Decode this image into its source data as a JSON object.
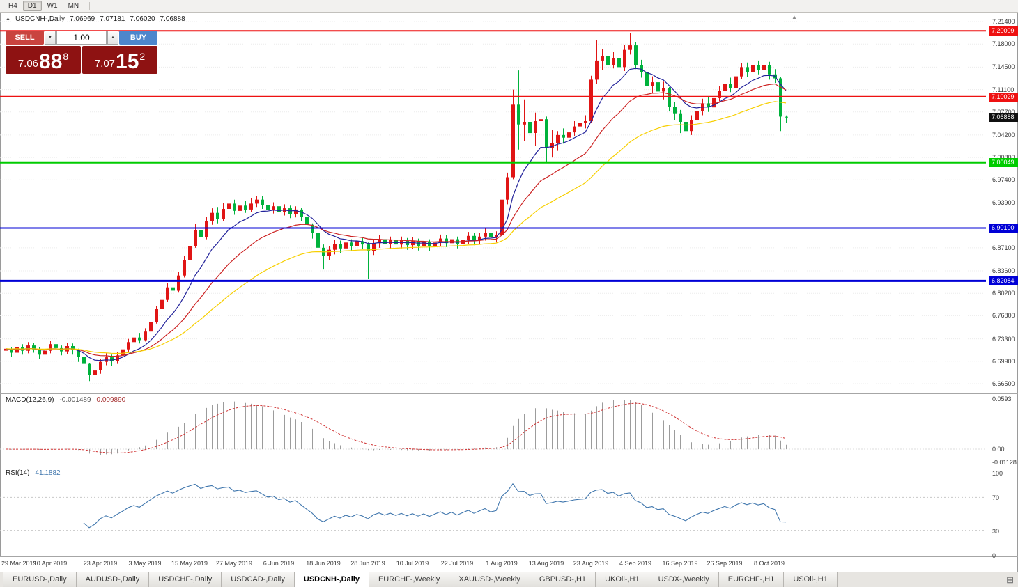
{
  "toolbar": {
    "periods": [
      {
        "label": "H4",
        "active": false
      },
      {
        "label": "D1",
        "active": true
      },
      {
        "label": "W1",
        "active": false
      },
      {
        "label": "MN",
        "active": false
      }
    ]
  },
  "header": {
    "symbol": "USDCNH-,Daily",
    "open": "7.06969",
    "high": "7.07181",
    "low": "7.06020",
    "close": "7.06888"
  },
  "trade_widget": {
    "sell_label": "SELL",
    "buy_label": "BUY",
    "lot": "1.00",
    "bid": {
      "prefix": "7.06",
      "big": "88",
      "sup": "8"
    },
    "ask": {
      "prefix": "7.07",
      "big": "15",
      "sup": "2"
    },
    "colors": {
      "sell_btn": "#c9433f",
      "buy_btn": "#4d86cc",
      "price_box": "#8e1212"
    }
  },
  "price_axis": {
    "labels": [
      "7.21400",
      "7.18000",
      "7.14500",
      "7.11100",
      "7.07700",
      "7.04200",
      "7.00800",
      "6.97400",
      "6.93900",
      "6.87100",
      "6.83600",
      "6.80200",
      "6.76800",
      "6.73300",
      "6.69900",
      "6.66500"
    ],
    "badges": [
      {
        "value": "7.20009",
        "color": "#ee1111",
        "type": "level"
      },
      {
        "value": "7.10029",
        "color": "#ee1111",
        "type": "level"
      },
      {
        "value": "7.06888",
        "color": "#101010",
        "type": "current"
      },
      {
        "value": "7.00049",
        "color": "#00cc00",
        "type": "level"
      },
      {
        "value": "6.90100",
        "color": "#0000d6",
        "type": "level"
      },
      {
        "value": "6.82084",
        "color": "#0000d6",
        "type": "level"
      }
    ]
  },
  "macd": {
    "label": "MACD(12,26,9)",
    "main_value": "-0.001489",
    "signal_value": "0.009890",
    "axis": [
      "0.0593",
      "0.00",
      "-0.01128"
    ],
    "histogram_color": "#9c9c9c",
    "signal_color": "#d03636"
  },
  "rsi": {
    "label": "RSI(14)",
    "value": "41.1882",
    "period": 14,
    "levels": [
      70,
      30
    ],
    "axis": [
      "100",
      "70",
      "30",
      "0"
    ],
    "color": "#3f76ad"
  },
  "misc": {
    "collapse_icon": "▲",
    "shift_marker": "▲",
    "spin_down_icon": "▼",
    "spin_up_icon": "▲",
    "tile_icon": "⊞"
  },
  "tabs": [
    {
      "label": "EURUSD-,Daily",
      "active": false
    },
    {
      "label": "AUDUSD-,Daily",
      "active": false
    },
    {
      "label": "USDCHF-,Daily",
      "active": false
    },
    {
      "label": "USDCAD-,Daily",
      "active": false
    },
    {
      "label": "USDCNH-,Daily",
      "active": true
    },
    {
      "label": "EURCHF-,Weekly",
      "active": false
    },
    {
      "label": "XAUUSD-,Weekly",
      "active": false
    },
    {
      "label": "GBPUSD-,H1",
      "active": false
    },
    {
      "label": "UKOil-,H1",
      "active": false
    },
    {
      "label": "USDX-,Weekly",
      "active": false
    },
    {
      "label": "EURCHF-,H1",
      "active": false
    },
    {
      "label": "USOil-,H1",
      "active": false
    }
  ],
  "chart_data": {
    "type": "candlestick",
    "symbol": "USDCNH",
    "timeframe": "Daily",
    "y_range": [
      6.665,
      7.214
    ],
    "up_color": "#e01515",
    "down_color": "#00b23c",
    "moving_averages": [
      {
        "period": 9,
        "color": "#22229a"
      },
      {
        "period": 20,
        "color": "#cc2222"
      },
      {
        "period": 40,
        "color": "#f7cf00"
      }
    ],
    "hlines": [
      {
        "value": 7.20009,
        "color": "#ee1111",
        "width": 2
      },
      {
        "value": 7.10029,
        "color": "#ee1111",
        "width": 2
      },
      {
        "value": 7.00049,
        "color": "#00cc00",
        "width": 3
      },
      {
        "value": 6.901,
        "color": "#0000d6",
        "width": 2
      },
      {
        "value": 6.82084,
        "color": "#0000d6",
        "width": 3
      }
    ],
    "indicators": [
      {
        "name": "MACD",
        "params": [
          12,
          26,
          9
        ],
        "current": [
          "-0.001489",
          "0.009890"
        ]
      },
      {
        "name": "RSI",
        "params": [
          14
        ],
        "current": "41.1882"
      }
    ],
    "dates": [
      {
        "label": "29 Mar 2019",
        "i": 0
      },
      {
        "label": "10 Apr 2019",
        "i": 8
      },
      {
        "label": "23 Apr 2019",
        "i": 17
      },
      {
        "label": "3 May 2019",
        "i": 25
      },
      {
        "label": "15 May 2019",
        "i": 33
      },
      {
        "label": "27 May 2019",
        "i": 41
      },
      {
        "label": "6 Jun 2019",
        "i": 49
      },
      {
        "label": "18 Jun 2019",
        "i": 57
      },
      {
        "label": "28 Jun 2019",
        "i": 65
      },
      {
        "label": "10 Jul 2019",
        "i": 73
      },
      {
        "label": "22 Jul 2019",
        "i": 81
      },
      {
        "label": "1 Aug 2019",
        "i": 89
      },
      {
        "label": "13 Aug 2019",
        "i": 97
      },
      {
        "label": "23 Aug 2019",
        "i": 105
      },
      {
        "label": "4 Sep 2019",
        "i": 113
      },
      {
        "label": "16 Sep 2019",
        "i": 121
      },
      {
        "label": "26 Sep 2019",
        "i": 129
      },
      {
        "label": "8 Oct 2019",
        "i": 137
      }
    ],
    "ohlc": [
      [
        6.715,
        6.723,
        6.709,
        6.718
      ],
      [
        6.718,
        6.721,
        6.706,
        6.712
      ],
      [
        6.712,
        6.726,
        6.708,
        6.721
      ],
      [
        6.721,
        6.725,
        6.709,
        6.715
      ],
      [
        6.715,
        6.728,
        6.711,
        6.723
      ],
      [
        6.723,
        6.727,
        6.712,
        6.717
      ],
      [
        6.717,
        6.72,
        6.702,
        6.709
      ],
      [
        6.709,
        6.719,
        6.704,
        6.715
      ],
      [
        6.715,
        6.73,
        6.711,
        6.725
      ],
      [
        6.725,
        6.729,
        6.713,
        6.719
      ],
      [
        6.719,
        6.723,
        6.708,
        6.714
      ],
      [
        6.714,
        6.727,
        6.71,
        6.722
      ],
      [
        6.722,
        6.726,
        6.709,
        6.716
      ],
      [
        6.716,
        6.718,
        6.698,
        6.706
      ],
      [
        6.706,
        6.708,
        6.687,
        6.695
      ],
      [
        6.695,
        6.696,
        6.669,
        6.678
      ],
      [
        6.678,
        6.692,
        6.672,
        6.685
      ],
      [
        6.685,
        6.702,
        6.68,
        6.698
      ],
      [
        6.698,
        6.711,
        6.693,
        6.705
      ],
      [
        6.705,
        6.709,
        6.692,
        6.699
      ],
      [
        6.699,
        6.713,
        6.695,
        6.708
      ],
      [
        6.708,
        6.722,
        6.704,
        6.717
      ],
      [
        6.717,
        6.733,
        6.713,
        6.728
      ],
      [
        6.728,
        6.74,
        6.723,
        6.735
      ],
      [
        6.735,
        6.742,
        6.726,
        6.731
      ],
      [
        6.731,
        6.749,
        6.729,
        6.744
      ],
      [
        6.744,
        6.764,
        6.741,
        6.759
      ],
      [
        6.759,
        6.783,
        6.756,
        6.778
      ],
      [
        6.778,
        6.799,
        6.775,
        6.792
      ],
      [
        6.792,
        6.818,
        6.789,
        6.811
      ],
      [
        6.811,
        6.82,
        6.799,
        6.806
      ],
      [
        6.806,
        6.835,
        6.803,
        6.829
      ],
      [
        6.829,
        6.859,
        6.826,
        6.852
      ],
      [
        6.852,
        6.882,
        6.849,
        6.874
      ],
      [
        6.874,
        6.907,
        6.871,
        6.898
      ],
      [
        6.898,
        6.912,
        6.88,
        6.887
      ],
      [
        6.887,
        6.918,
        6.884,
        6.911
      ],
      [
        6.911,
        6.931,
        6.906,
        6.924
      ],
      [
        6.924,
        6.933,
        6.908,
        6.915
      ],
      [
        6.915,
        6.939,
        6.911,
        6.93
      ],
      [
        6.93,
        6.948,
        6.926,
        6.938
      ],
      [
        6.938,
        6.944,
        6.921,
        6.927
      ],
      [
        6.927,
        6.943,
        6.923,
        6.935
      ],
      [
        6.935,
        6.942,
        6.924,
        6.929
      ],
      [
        6.929,
        6.946,
        6.925,
        6.938
      ],
      [
        6.938,
        6.95,
        6.933,
        6.944
      ],
      [
        6.944,
        6.949,
        6.93,
        6.936
      ],
      [
        6.936,
        6.941,
        6.922,
        6.928
      ],
      [
        6.928,
        6.94,
        6.923,
        6.934
      ],
      [
        6.934,
        6.938,
        6.919,
        6.925
      ],
      [
        6.925,
        6.937,
        6.92,
        6.931
      ],
      [
        6.931,
        6.935,
        6.916,
        6.922
      ],
      [
        6.922,
        6.934,
        6.917,
        6.929
      ],
      [
        6.929,
        6.932,
        6.912,
        6.918
      ],
      [
        6.918,
        6.92,
        6.899,
        6.906
      ],
      [
        6.906,
        6.908,
        6.885,
        6.893
      ],
      [
        6.893,
        6.894,
        6.857,
        6.871
      ],
      [
        6.871,
        6.876,
        6.838,
        6.859
      ],
      [
        6.859,
        6.874,
        6.852,
        6.868
      ],
      [
        6.868,
        6.883,
        6.861,
        6.877
      ],
      [
        6.877,
        6.882,
        6.863,
        6.87
      ],
      [
        6.87,
        6.885,
        6.865,
        6.879
      ],
      [
        6.879,
        6.884,
        6.866,
        6.873
      ],
      [
        6.873,
        6.887,
        6.868,
        6.881
      ],
      [
        6.881,
        6.886,
        6.869,
        6.876
      ],
      [
        6.876,
        6.879,
        6.824,
        6.866
      ],
      [
        6.866,
        6.883,
        6.86,
        6.878
      ],
      [
        6.878,
        6.89,
        6.871,
        6.884
      ],
      [
        6.884,
        6.889,
        6.87,
        6.877
      ],
      [
        6.877,
        6.888,
        6.87,
        6.883
      ],
      [
        6.883,
        6.887,
        6.869,
        6.876
      ],
      [
        6.876,
        6.888,
        6.87,
        6.882
      ],
      [
        6.882,
        6.886,
        6.868,
        6.875
      ],
      [
        6.875,
        6.887,
        6.869,
        6.881
      ],
      [
        6.881,
        6.885,
        6.867,
        6.874
      ],
      [
        6.874,
        6.886,
        6.868,
        6.88
      ],
      [
        6.88,
        6.884,
        6.866,
        6.873
      ],
      [
        6.873,
        6.885,
        6.867,
        6.879
      ],
      [
        6.879,
        6.891,
        6.873,
        6.885
      ],
      [
        6.885,
        6.89,
        6.872,
        6.878
      ],
      [
        6.878,
        6.889,
        6.871,
        6.884
      ],
      [
        6.884,
        6.888,
        6.87,
        6.877
      ],
      [
        6.877,
        6.889,
        6.871,
        6.883
      ],
      [
        6.883,
        6.895,
        6.877,
        6.889
      ],
      [
        6.889,
        6.893,
        6.875,
        6.882
      ],
      [
        6.882,
        6.894,
        6.876,
        6.888
      ],
      [
        6.888,
        6.9,
        6.882,
        6.894
      ],
      [
        6.894,
        6.898,
        6.88,
        6.887
      ],
      [
        6.887,
        6.896,
        6.879,
        6.89
      ],
      [
        6.89,
        6.95,
        6.886,
        6.944
      ],
      [
        6.944,
        6.985,
        6.937,
        6.978
      ],
      [
        6.978,
        7.111,
        6.975,
        7.088
      ],
      [
        7.088,
        7.14,
        7.02,
        7.058
      ],
      [
        7.058,
        7.096,
        7.033,
        7.062
      ],
      [
        7.062,
        7.09,
        7.03,
        7.045
      ],
      [
        7.045,
        7.076,
        7.025,
        7.063
      ],
      [
        7.063,
        7.11,
        7.05,
        7.066
      ],
      [
        7.066,
        7.07,
        7.001,
        7.022
      ],
      [
        7.022,
        7.05,
        7.008,
        7.03
      ],
      [
        7.03,
        7.048,
        7.018,
        7.042
      ],
      [
        7.042,
        7.052,
        7.029,
        7.038
      ],
      [
        7.038,
        7.054,
        7.031,
        7.046
      ],
      [
        7.046,
        7.063,
        7.04,
        7.055
      ],
      [
        7.055,
        7.068,
        7.047,
        7.06
      ],
      [
        7.06,
        7.072,
        7.052,
        7.063
      ],
      [
        7.063,
        7.132,
        7.06,
        7.126
      ],
      [
        7.126,
        7.186,
        7.119,
        7.155
      ],
      [
        7.155,
        7.172,
        7.141,
        7.162
      ],
      [
        7.162,
        7.17,
        7.138,
        7.148
      ],
      [
        7.148,
        7.168,
        7.143,
        7.159
      ],
      [
        7.159,
        7.166,
        7.135,
        7.145
      ],
      [
        7.145,
        7.179,
        7.139,
        7.171
      ],
      [
        7.171,
        7.1965,
        7.164,
        7.178
      ],
      [
        7.178,
        7.183,
        7.142,
        7.148
      ],
      [
        7.148,
        7.156,
        7.129,
        7.138
      ],
      [
        7.138,
        7.142,
        7.108,
        7.116
      ],
      [
        7.116,
        7.131,
        7.105,
        7.122
      ],
      [
        7.122,
        7.127,
        7.098,
        7.108
      ],
      [
        7.108,
        7.123,
        7.096,
        7.113
      ],
      [
        7.113,
        7.115,
        7.078,
        7.085
      ],
      [
        7.085,
        7.092,
        7.065,
        7.075
      ],
      [
        7.075,
        7.08,
        7.045,
        7.062
      ],
      [
        7.062,
        7.068,
        7.029,
        7.048
      ],
      [
        7.048,
        7.072,
        7.042,
        7.065
      ],
      [
        7.065,
        7.085,
        7.058,
        7.078
      ],
      [
        7.078,
        7.097,
        7.072,
        7.09
      ],
      [
        7.09,
        7.099,
        7.077,
        7.084
      ],
      [
        7.084,
        7.105,
        7.08,
        7.098
      ],
      [
        7.098,
        7.116,
        7.093,
        7.109
      ],
      [
        7.109,
        7.128,
        7.104,
        7.12
      ],
      [
        7.12,
        7.129,
        7.107,
        7.113
      ],
      [
        7.113,
        7.139,
        7.109,
        7.131
      ],
      [
        7.131,
        7.151,
        7.127,
        7.145
      ],
      [
        7.145,
        7.152,
        7.13,
        7.138
      ],
      [
        7.138,
        7.156,
        7.132,
        7.148
      ],
      [
        7.148,
        7.155,
        7.134,
        7.141
      ],
      [
        7.141,
        7.17,
        7.137,
        7.148
      ],
      [
        7.148,
        7.153,
        7.126,
        7.134
      ],
      [
        7.134,
        7.142,
        7.121,
        7.128
      ],
      [
        7.128,
        7.13,
        7.048,
        7.07
      ],
      [
        7.0697,
        7.0718,
        7.0602,
        7.0689
      ]
    ]
  }
}
